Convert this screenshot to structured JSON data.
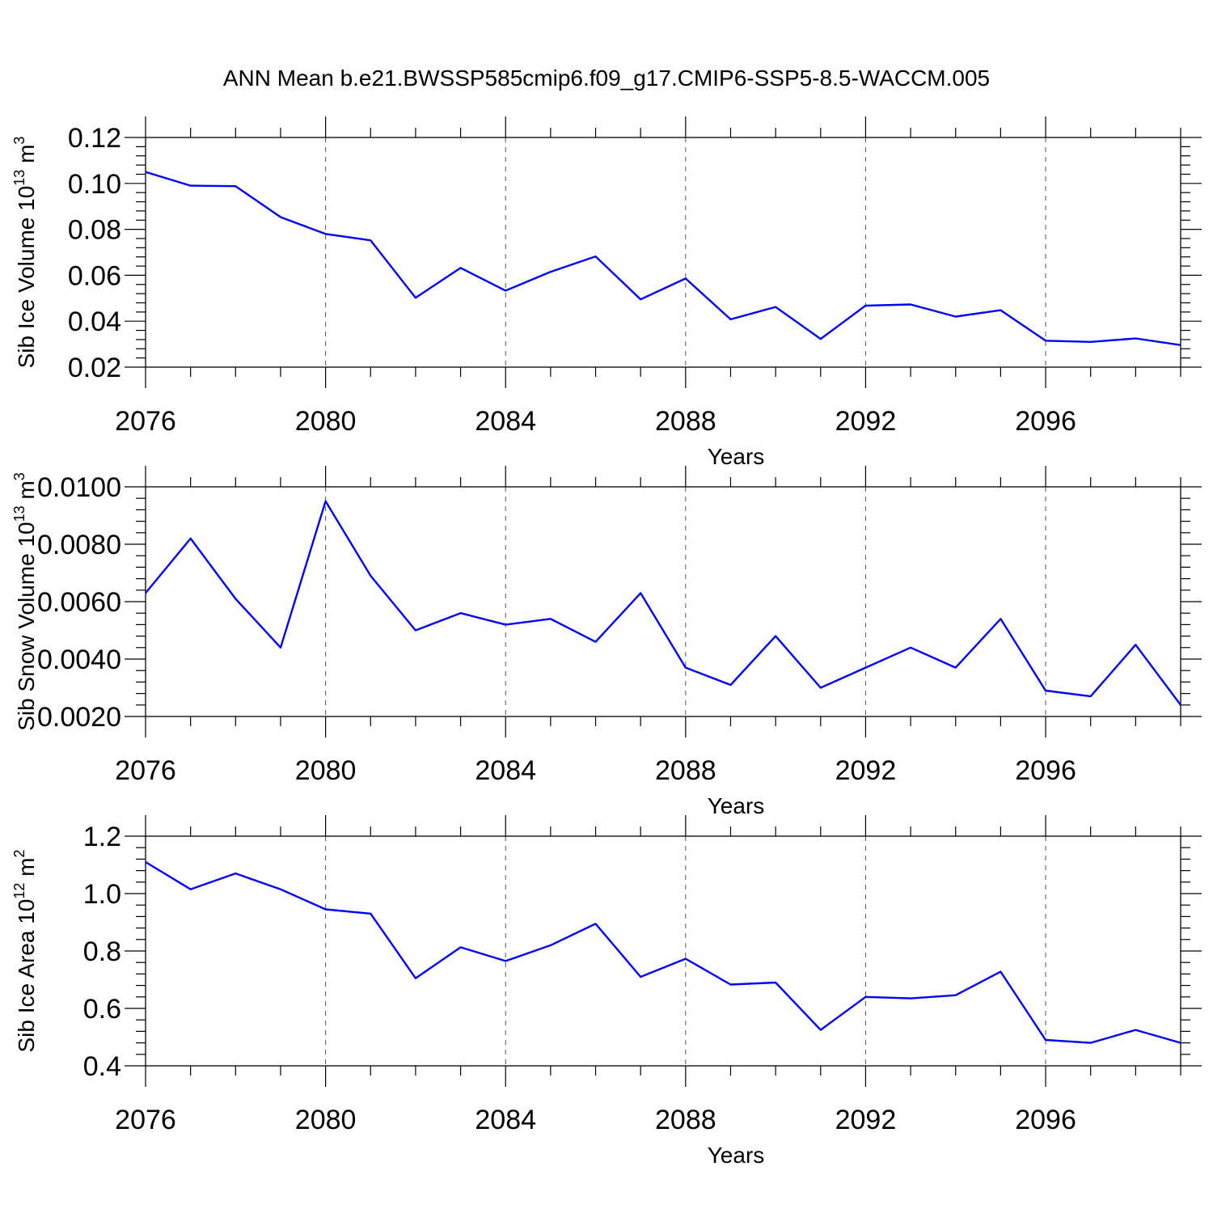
{
  "figure": {
    "title": "ANN Mean b.e21.BWSSP585cmip6.f09_g17.CMIP6-SSP5-8.5-WACCM.005"
  },
  "chart_data": [
    {
      "type": "line",
      "xlabel": "Years",
      "ylabel": "Sib Ice Volume 10",
      "ylabel_exp": "13",
      "ylabel_unit": " m",
      "ylabel_unit_exp": "3",
      "xlim": [
        2076,
        2099
      ],
      "ylim": [
        0.02,
        0.12
      ],
      "xticks": [
        "2076",
        "2080",
        "2084",
        "2088",
        "2092",
        "2096"
      ],
      "yticks": [
        "0.02",
        "0.04",
        "0.06",
        "0.08",
        "0.10",
        "0.12"
      ],
      "grid": "dashed vertical lines at major x ticks",
      "x": [
        2076,
        2077,
        2078,
        2079,
        2080,
        2081,
        2082,
        2083,
        2084,
        2085,
        2086,
        2087,
        2088,
        2089,
        2090,
        2091,
        2092,
        2093,
        2094,
        2095,
        2096,
        2097,
        2098,
        2099
      ],
      "values": [
        0.105,
        0.099,
        0.0988,
        0.0853,
        0.078,
        0.0752,
        0.0502,
        0.0632,
        0.0533,
        0.0615,
        0.0682,
        0.0495,
        0.0586,
        0.0408,
        0.0462,
        0.0323,
        0.0468,
        0.0473,
        0.042,
        0.0448,
        0.0315,
        0.031,
        0.0325,
        0.0296
      ]
    },
    {
      "type": "line",
      "xlabel": "Years",
      "ylabel": "Sib Snow Volume 10",
      "ylabel_exp": "13",
      "ylabel_unit": " m",
      "ylabel_unit_exp": "3",
      "xlim": [
        2076,
        2099
      ],
      "ylim": [
        0.002,
        0.01
      ],
      "xticks": [
        "2076",
        "2080",
        "2084",
        "2088",
        "2092",
        "2096"
      ],
      "yticks": [
        "0.0020",
        "0.0040",
        "0.0060",
        "0.0080",
        "0.0100"
      ],
      "grid": "dashed vertical lines at major x ticks",
      "x": [
        2076,
        2077,
        2078,
        2079,
        2080,
        2081,
        2082,
        2083,
        2084,
        2085,
        2086,
        2087,
        2088,
        2089,
        2090,
        2091,
        2092,
        2093,
        2094,
        2095,
        2096,
        2097,
        2098,
        2099
      ],
      "values": [
        0.0063,
        0.0082,
        0.0061,
        0.0044,
        0.0095,
        0.0069,
        0.005,
        0.0056,
        0.0052,
        0.0054,
        0.0046,
        0.0063,
        0.0037,
        0.0031,
        0.0048,
        0.003,
        0.0037,
        0.0044,
        0.0037,
        0.0054,
        0.0029,
        0.0027,
        0.0045,
        0.0024
      ]
    },
    {
      "type": "line",
      "xlabel": "Years",
      "ylabel": "Sib Ice Area 10",
      "ylabel_exp": "12",
      "ylabel_unit": " m",
      "ylabel_unit_exp": "2",
      "xlim": [
        2076,
        2099
      ],
      "ylim": [
        0.4,
        1.2
      ],
      "xticks": [
        "2076",
        "2080",
        "2084",
        "2088",
        "2092",
        "2096"
      ],
      "yticks": [
        "0.4",
        "0.6",
        "0.8",
        "1.0",
        "1.2"
      ],
      "grid": "dashed vertical lines at major x ticks",
      "x": [
        2076,
        2077,
        2078,
        2079,
        2080,
        2081,
        2082,
        2083,
        2084,
        2085,
        2086,
        2087,
        2088,
        2089,
        2090,
        2091,
        2092,
        2093,
        2094,
        2095,
        2096,
        2097,
        2098,
        2099
      ],
      "values": [
        1.11,
        1.015,
        1.07,
        1.015,
        0.945,
        0.93,
        0.705,
        0.813,
        0.765,
        0.82,
        0.895,
        0.71,
        0.773,
        0.683,
        0.69,
        0.525,
        0.64,
        0.635,
        0.646,
        0.728,
        0.49,
        0.48,
        0.525,
        0.48
      ]
    }
  ]
}
